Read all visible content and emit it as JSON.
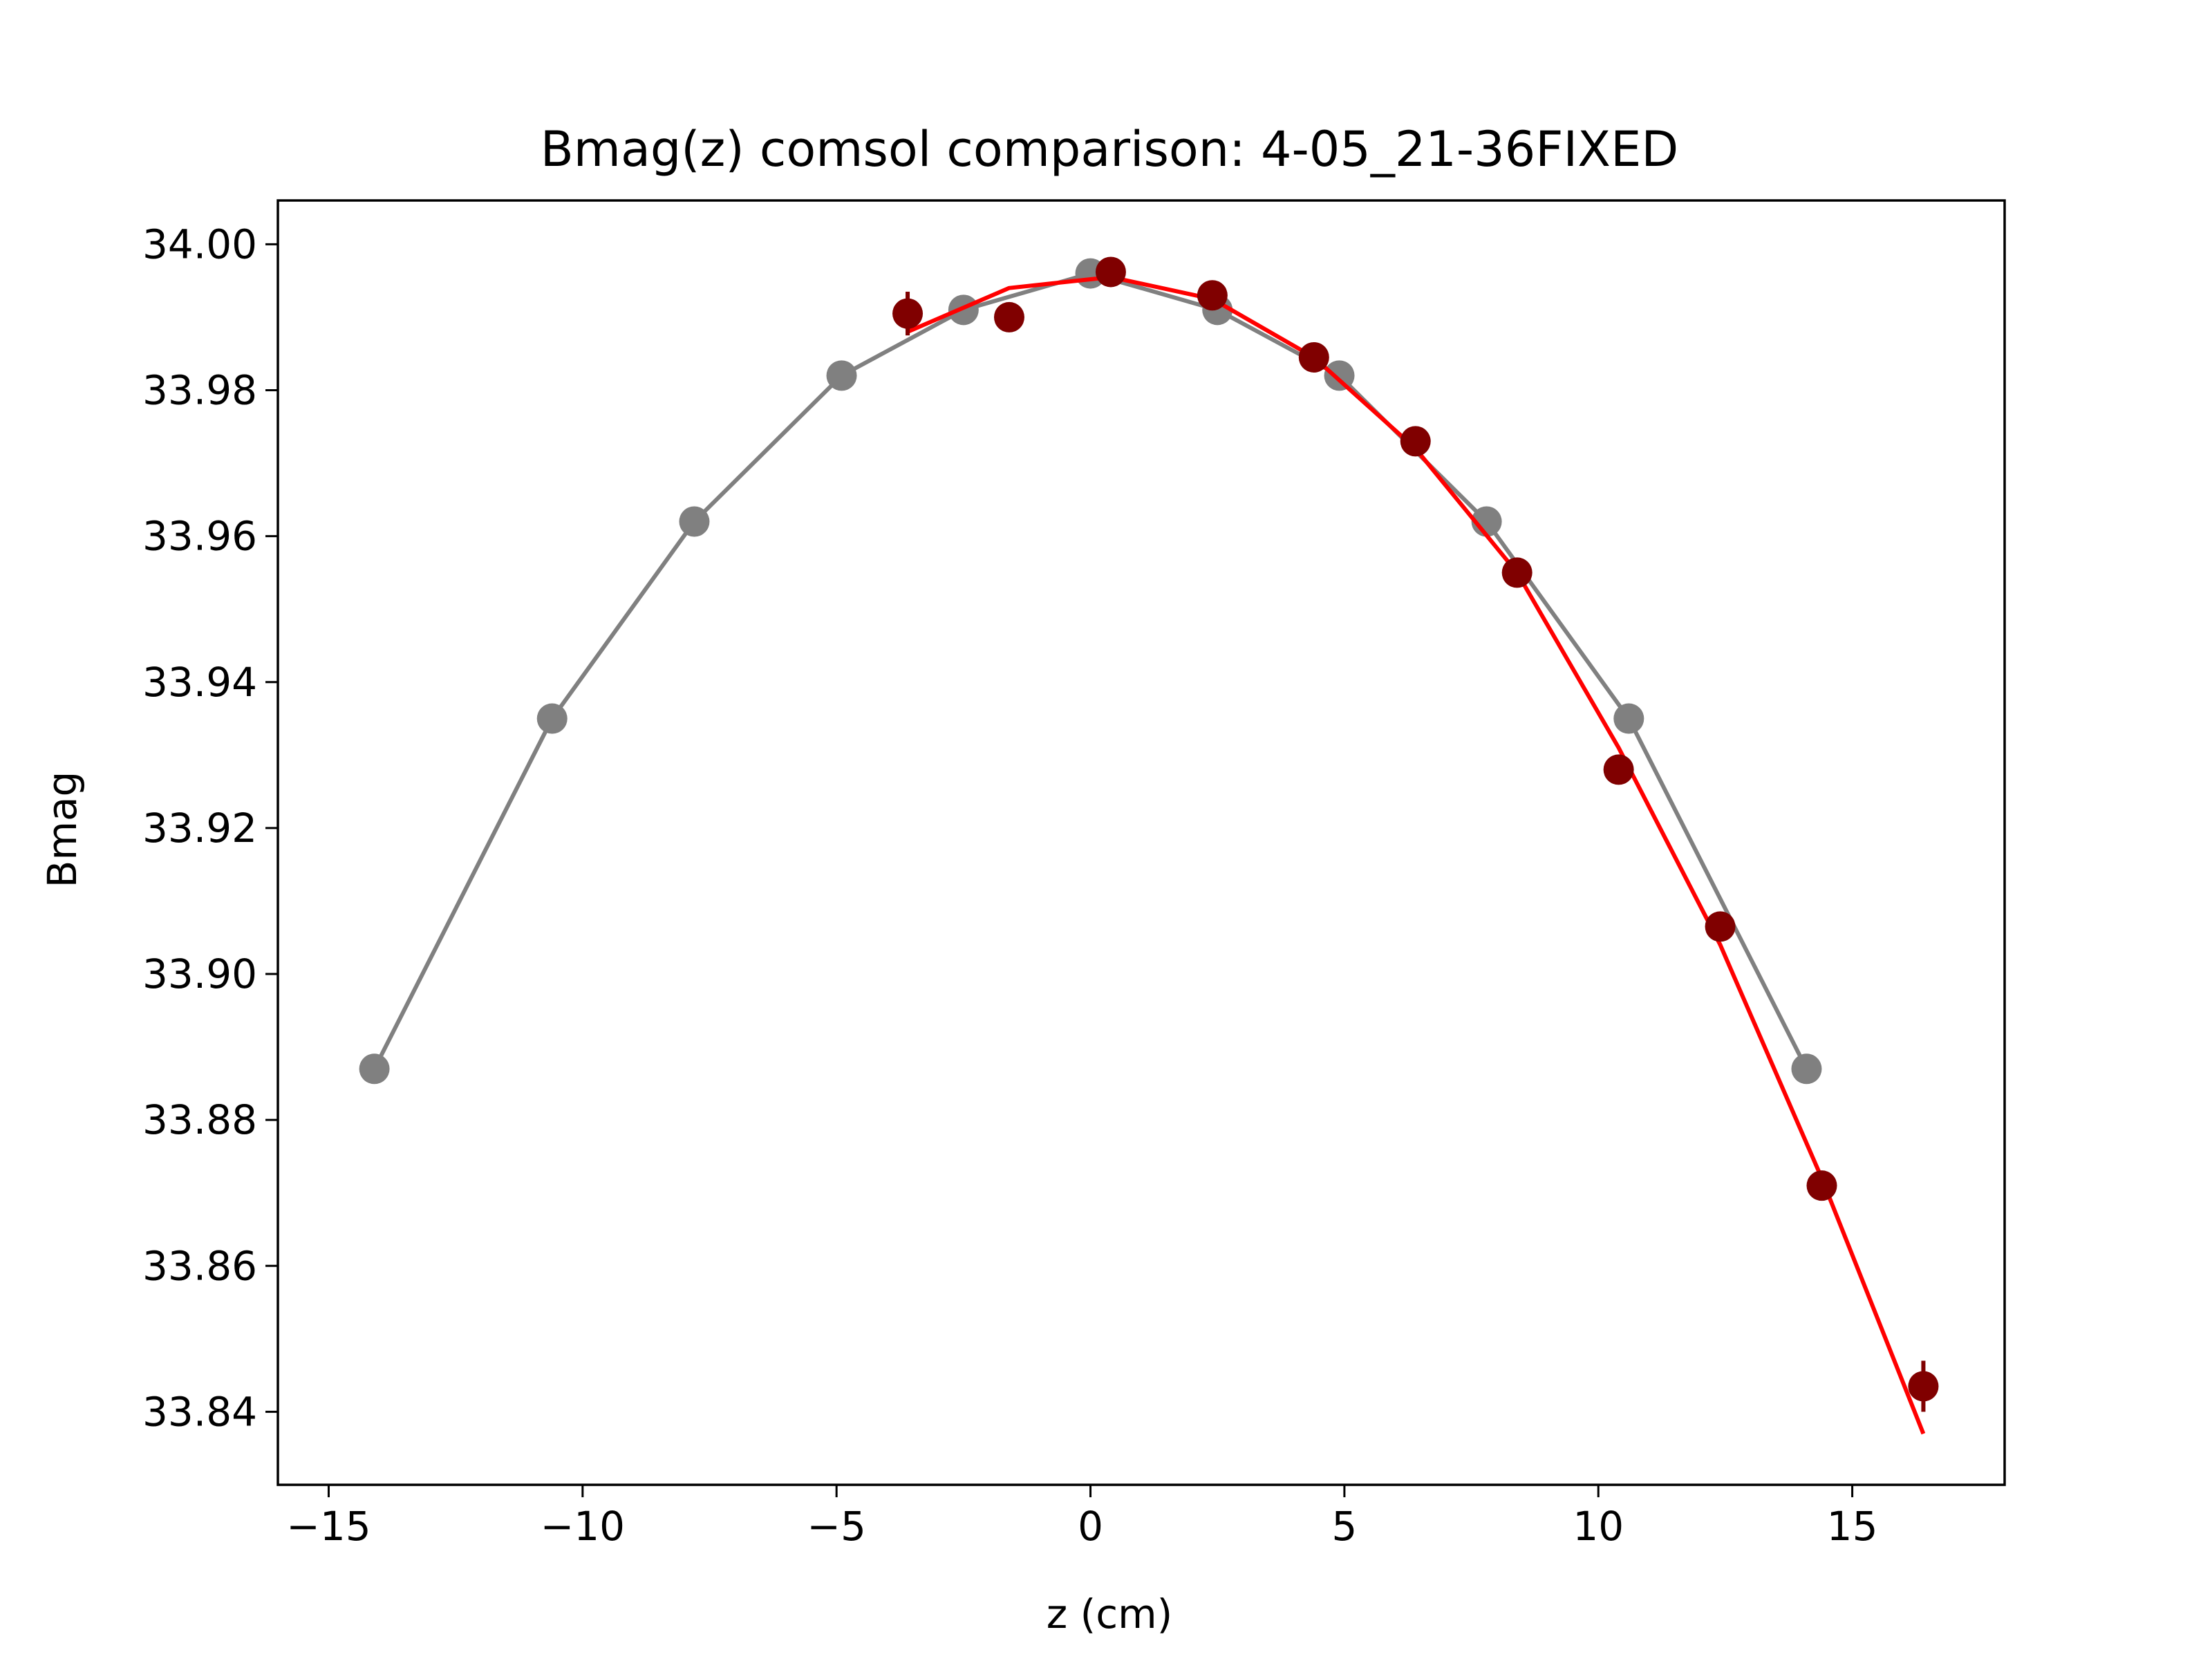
{
  "chart_data": {
    "type": "line",
    "title": "Bmag(z) comsol comparison: 4-05_21-36FIXED",
    "xlabel": "z (cm)",
    "ylabel": "Bmag",
    "xlim": [
      -16,
      18
    ],
    "ylim": [
      33.83,
      34.006
    ],
    "xticks": [
      -15,
      -10,
      -5,
      0,
      5,
      10,
      15
    ],
    "xtick_labels": [
      "−15",
      "−10",
      "−5",
      "0",
      "5",
      "10",
      "15"
    ],
    "yticks": [
      33.84,
      33.86,
      33.88,
      33.9,
      33.92,
      33.94,
      33.96,
      33.98,
      34.0
    ],
    "ytick_labels": [
      "33.84",
      "33.86",
      "33.88",
      "33.90",
      "33.92",
      "33.94",
      "33.96",
      "33.98",
      "34.00"
    ],
    "grid": false,
    "series": [
      {
        "style": "line-markers",
        "color": "#808080",
        "x": [
          -14.1,
          -10.6,
          -7.8,
          -4.9,
          -2.5,
          0.0,
          2.5,
          4.9,
          7.8,
          10.6,
          14.1
        ],
        "y": [
          33.887,
          33.935,
          33.962,
          33.982,
          33.991,
          33.996,
          33.991,
          33.982,
          33.962,
          33.935,
          33.887
        ]
      },
      {
        "style": "line",
        "color": "#ff0000",
        "x": [
          -3.6,
          -1.6,
          0.4,
          2.4,
          4.4,
          6.4,
          8.4,
          10.4,
          12.4,
          14.4,
          16.4
        ],
        "y": [
          33.988,
          33.994,
          33.9955,
          33.9925,
          33.9845,
          33.972,
          33.955,
          33.931,
          33.904,
          33.872,
          33.837
        ]
      },
      {
        "style": "markers-errorbars",
        "color": "#800000",
        "x": [
          -3.6,
          -1.6,
          0.4,
          2.4,
          4.4,
          6.4,
          8.4,
          10.4,
          12.4,
          14.4,
          16.4
        ],
        "y": [
          33.9905,
          33.99,
          33.9962,
          33.993,
          33.9845,
          33.973,
          33.955,
          33.928,
          33.9065,
          33.871,
          33.8435
        ],
        "yerr": [
          0.003,
          0.002,
          0.0015,
          0.002,
          0.001,
          0.001,
          0.001,
          0.001,
          0.001,
          0.001,
          0.0035
        ]
      }
    ]
  }
}
